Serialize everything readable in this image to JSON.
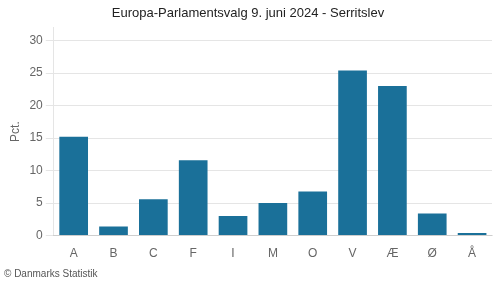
{
  "chart_data": {
    "type": "bar",
    "title": "Europa-Parlamentsvalg 9. juni 2024 - Serritslev",
    "categories": [
      "A",
      "B",
      "C",
      "F",
      "I",
      "M",
      "O",
      "V",
      "Æ",
      "Ø",
      "Å"
    ],
    "values": [
      15.2,
      1.4,
      5.6,
      11.6,
      3.0,
      5.0,
      6.8,
      25.4,
      23.0,
      3.4,
      0.4
    ],
    "color": "#1a7099",
    "ylabel": "Pct.",
    "ylim": [
      0,
      32
    ],
    "yticks": [
      0,
      5,
      10,
      15,
      20,
      25,
      30
    ],
    "grid": true,
    "annotations": [
      "© Danmarks Statistik"
    ]
  }
}
